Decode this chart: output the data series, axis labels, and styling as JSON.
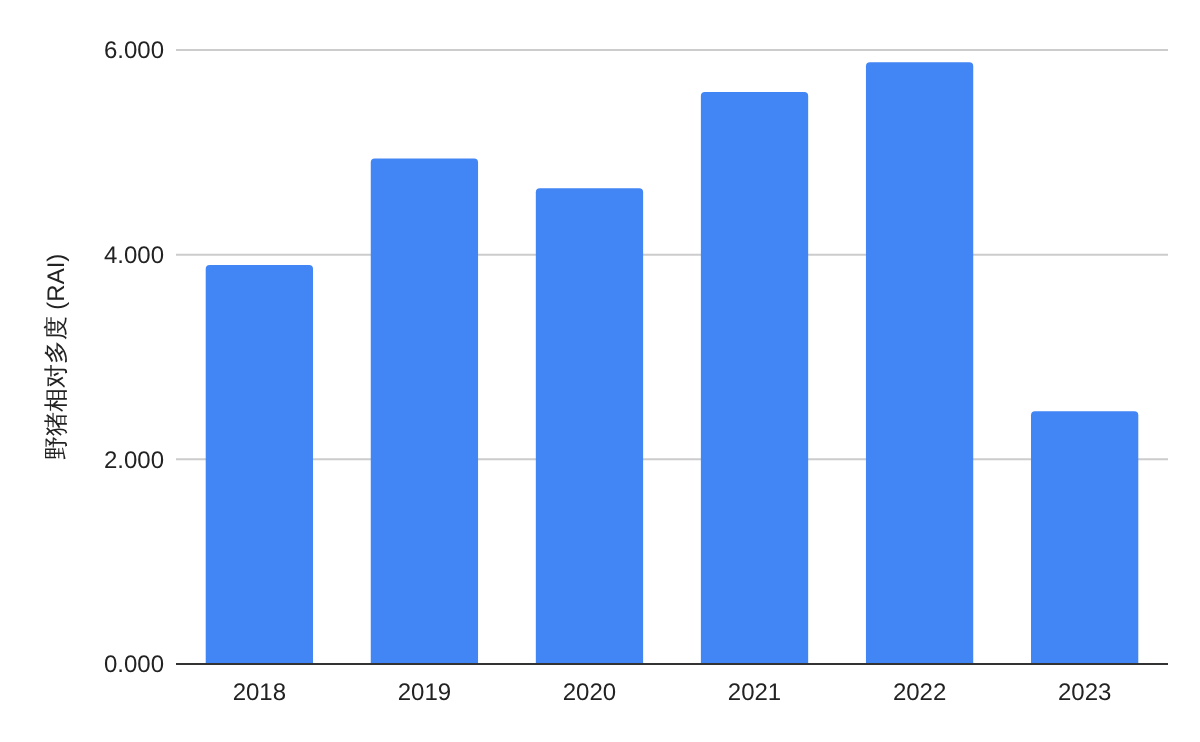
{
  "chart_data": {
    "type": "bar",
    "ylabel": "野猪相对多度 (RAI)",
    "categories": [
      "2018",
      "2019",
      "2020",
      "2021",
      "2022",
      "2023"
    ],
    "values": [
      3.9,
      4.94,
      4.65,
      5.59,
      5.88,
      2.47
    ],
    "color": "#4285f4",
    "ylim": [
      0,
      6
    ],
    "yticks": [
      {
        "value": 0,
        "label": "0.000"
      },
      {
        "value": 2,
        "label": "2.000"
      },
      {
        "value": 4,
        "label": "4.000"
      },
      {
        "value": 6,
        "label": "6.000"
      }
    ],
    "grid": "y"
  }
}
